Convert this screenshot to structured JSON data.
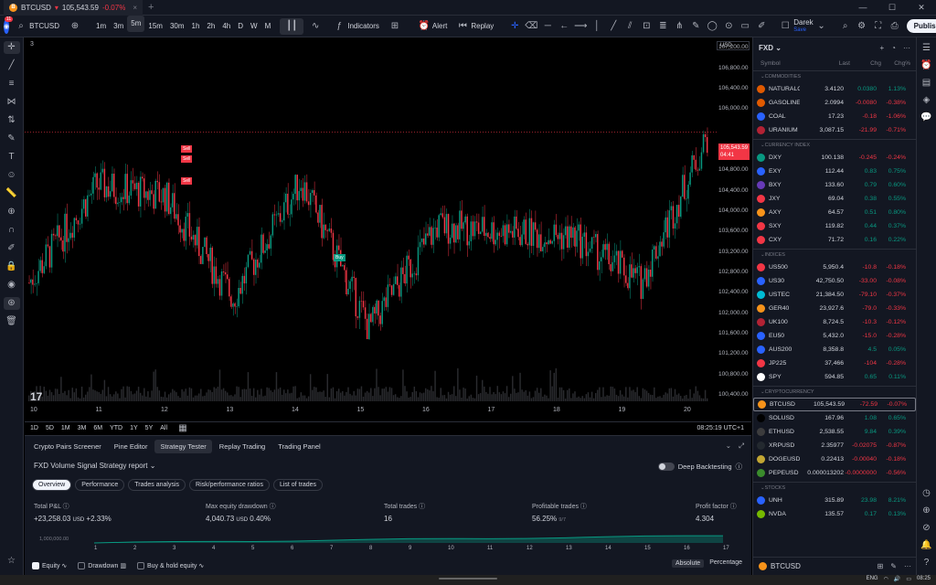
{
  "window": {
    "tab_symbol": "BTCUSD",
    "tab_price": "105,543.59",
    "tab_change": "-0.07%",
    "tab_glyph": "B"
  },
  "toolbar": {
    "symbol": "BTCUSD",
    "intervals": [
      "1m",
      "3m",
      "5m",
      "15m",
      "30m",
      "1h",
      "2h",
      "4h",
      "D",
      "W",
      "M"
    ],
    "active_interval": "5m",
    "indicators_label": "Indicators",
    "alert_label": "Alert",
    "replay_label": "Replay",
    "user_name": "Darek",
    "user_sub": "Save",
    "publish_label": "Publish",
    "notification_count": "11"
  },
  "chart": {
    "indicator_count": "3",
    "currency": "USD",
    "price_labels": [
      "107,200.00",
      "106,800.00",
      "106,400.00",
      "106,000.00",
      "105,200.00",
      "104,800.00",
      "104,400.00",
      "104,000.00",
      "103,600.00",
      "103,200.00",
      "102,800.00",
      "102,400.00",
      "102,000.00",
      "101,600.00",
      "101,200.00",
      "100,800.00",
      "100,400.00"
    ],
    "current_price": "105,543.59",
    "countdown": "04:41",
    "time_labels": [
      "10",
      "11",
      "12",
      "13",
      "14",
      "15",
      "16",
      "17",
      "18",
      "19",
      "20"
    ],
    "signals": [
      "Sell",
      "Sell",
      "Sell",
      "Buy"
    ],
    "range_buttons": [
      "1D",
      "5D",
      "1M",
      "3M",
      "6M",
      "YTD",
      "1Y",
      "5Y",
      "All"
    ],
    "clock": "08:25:19 UTC+1",
    "colors": {
      "up": "#089981",
      "down": "#f23645"
    }
  },
  "chart_data": {
    "type": "candlestick",
    "title": "BTCUSD · 5m",
    "xlabel": "",
    "ylabel": "USD",
    "ylim": [
      100200,
      107400
    ],
    "x": [
      "10",
      "11",
      "12",
      "13",
      "14",
      "15",
      "16",
      "17",
      "18",
      "19",
      "20"
    ],
    "series": [
      {
        "name": "Close",
        "values": [
          102600,
          104500,
          104300,
          102300,
          104600,
          101700,
          103700,
          103600,
          103500,
          102600,
          105540
        ]
      }
    ],
    "current_price": 105543.59
  },
  "bottom": {
    "tabs": [
      "Crypto Pairs Screener",
      "Pine Editor",
      "Strategy Tester",
      "Replay Trading",
      "Trading Panel"
    ],
    "active_tab": "Strategy Tester",
    "report_title": "FXD Volume Signal Strategy report",
    "deep_backtesting": "Deep Backtesting",
    "subtabs": [
      "Overview",
      "Performance",
      "Trades analysis",
      "Risk/performance ratios",
      "List of trades"
    ],
    "stats": {
      "pnl_label": "Total P&L",
      "pnl_value": "+23,258.03",
      "pnl_unit": "USD",
      "pnl_pct": "+2.33%",
      "dd_label": "Max equity drawdown",
      "dd_value": "4,040.73",
      "dd_unit": "USD",
      "dd_pct": "0.40%",
      "trades_label": "Total trades",
      "trades_value": "16",
      "profitable_label": "Profitable trades",
      "profitable_value": "56.25%",
      "profitable_ratio": "9/7",
      "pf_label": "Profit factor",
      "pf_value": "4.304"
    },
    "eq_axis_label": "1,000,000.00",
    "eq_ticks": [
      "1",
      "2",
      "3",
      "4",
      "5",
      "6",
      "7",
      "8",
      "9",
      "10",
      "11",
      "12",
      "13",
      "14",
      "15",
      "16",
      "17"
    ],
    "legend": [
      "Equity",
      "Drawdown",
      "Buy & hold equity"
    ],
    "mode": [
      "Absolute",
      "Percentage"
    ]
  },
  "watchlist": {
    "title": "FXD",
    "columns": [
      "Symbol",
      "Last",
      "Chg",
      "Chg%"
    ],
    "sections": [
      {
        "name": "COMMODITIES",
        "rows": [
          {
            "sym": "NATURALG",
            "last": "3.4120",
            "chg": "0.0380",
            "chgp": "1.13%",
            "dir": "up",
            "color": "#e05a00"
          },
          {
            "sym": "GASOLINE",
            "last": "2.0994",
            "chg": "-0.0080",
            "chgp": "-0.38%",
            "dir": "dn",
            "color": "#e05a00"
          },
          {
            "sym": "COAL",
            "last": "17.23",
            "chg": "-0.18",
            "chgp": "-1.06%",
            "dir": "dn",
            "color": "#2962ff"
          },
          {
            "sym": "URANIUM",
            "last": "3,087.15",
            "chg": "-21.99",
            "chgp": "-0.71%",
            "dir": "dn",
            "color": "#b22234"
          }
        ]
      },
      {
        "name": "CURRENCY INDEX",
        "rows": [
          {
            "sym": "DXY",
            "last": "100.138",
            "chg": "-0.245",
            "chgp": "-0.24%",
            "dir": "dn",
            "color": "#089981"
          },
          {
            "sym": "EXY",
            "last": "112.44",
            "chg": "0.83",
            "chgp": "0.75%",
            "dir": "up",
            "color": "#2962ff"
          },
          {
            "sym": "BXY",
            "last": "133.60",
            "chg": "0.79",
            "chgp": "0.60%",
            "dir": "up",
            "color": "#673ab7"
          },
          {
            "sym": "JXY",
            "last": "69.04",
            "chg": "0.38",
            "chgp": "0.55%",
            "dir": "up",
            "color": "#f23645"
          },
          {
            "sym": "AXY",
            "last": "64.57",
            "chg": "0.51",
            "chgp": "0.80%",
            "dir": "up",
            "color": "#f7931a"
          },
          {
            "sym": "SXY",
            "last": "119.82",
            "chg": "0.44",
            "chgp": "0.37%",
            "dir": "up",
            "color": "#f23645"
          },
          {
            "sym": "CXY",
            "last": "71.72",
            "chg": "0.16",
            "chgp": "0.22%",
            "dir": "up",
            "color": "#f23645"
          }
        ]
      },
      {
        "name": "INDICES",
        "rows": [
          {
            "sym": "US500",
            "last": "5,950.4",
            "chg": "-10.8",
            "chgp": "-0.18%",
            "dir": "dn",
            "color": "#f23645"
          },
          {
            "sym": "US30",
            "last": "42,750.50",
            "chg": "-33.00",
            "chgp": "-0.08%",
            "dir": "dn",
            "color": "#2962ff"
          },
          {
            "sym": "USTEC",
            "last": "21,384.50",
            "chg": "-79.10",
            "chgp": "-0.37%",
            "dir": "dn",
            "color": "#00bcd4"
          },
          {
            "sym": "GER40",
            "last": "23,927.6",
            "chg": "-79.0",
            "chgp": "-0.33%",
            "dir": "dn",
            "color": "#f7931a"
          },
          {
            "sym": "UK100",
            "last": "8,724.5",
            "chg": "-10.3",
            "chgp": "-0.12%",
            "dir": "dn",
            "color": "#b22234"
          },
          {
            "sym": "EU50",
            "last": "5,432.0",
            "chg": "-15.0",
            "chgp": "-0.28%",
            "dir": "dn",
            "color": "#2962ff"
          },
          {
            "sym": "AUS200",
            "last": "8,358.8",
            "chg": "4.5",
            "chgp": "0.05%",
            "dir": "up",
            "color": "#2962ff"
          },
          {
            "sym": "JP225",
            "last": "37,466",
            "chg": "-104",
            "chgp": "-0.28%",
            "dir": "dn",
            "color": "#f23645"
          },
          {
            "sym": "SPY",
            "last": "594.85",
            "chg": "0.65",
            "chgp": "0.11%",
            "dir": "up",
            "color": "#ffffff"
          }
        ]
      },
      {
        "name": "CRYPTOCURRENCY",
        "rows": [
          {
            "sym": "BTCUSD",
            "last": "105,543.59",
            "chg": "-72.59",
            "chgp": "-0.07%",
            "dir": "dn",
            "color": "#f7931a",
            "sel": true
          },
          {
            "sym": "SOLUSD",
            "last": "167.96",
            "chg": "1.08",
            "chgp": "0.65%",
            "dir": "up",
            "color": "#000000"
          },
          {
            "sym": "ETHUSD",
            "last": "2,538.55",
            "chg": "9.84",
            "chgp": "0.39%",
            "dir": "up",
            "color": "#3c3c3d"
          },
          {
            "sym": "XRPUSD",
            "last": "2.35977",
            "chg": "-0.02075",
            "chgp": "-0.87%",
            "dir": "dn",
            "color": "#23292f"
          },
          {
            "sym": "DOGEUSD",
            "last": "0.22413",
            "chg": "-0.00040",
            "chgp": "-0.18%",
            "dir": "dn",
            "color": "#c2a633"
          },
          {
            "sym": "PEPEUSD",
            "last": "0.000013202",
            "chg": "-0.0000000",
            "chgp": "-0.56%",
            "dir": "dn",
            "color": "#3a8c2c"
          }
        ]
      },
      {
        "name": "STOCKS",
        "rows": [
          {
            "sym": "UNH",
            "last": "315.89",
            "chg": "23.98",
            "chgp": "8.21%",
            "dir": "up",
            "color": "#2962ff"
          },
          {
            "sym": "NVDA",
            "last": "135.57",
            "chg": "0.17",
            "chgp": "0.13%",
            "dir": "up",
            "color": "#76b900"
          }
        ]
      }
    ],
    "footer_symbol": "BTCUSD"
  },
  "taskbar": {
    "lang": "ENG",
    "time": "08:25"
  }
}
